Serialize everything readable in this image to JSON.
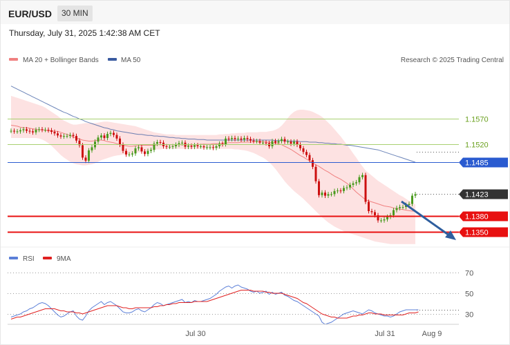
{
  "header": {
    "symbol": "EUR/USD",
    "timeframe": "30 MIN",
    "datetime": "Thursday, July 31, 2025 1:42:38 AM CET"
  },
  "legend": {
    "ma20": "MA 20 + Bollinger Bands",
    "ma50": "MA 50",
    "credit": "Research © 2025 Trading Central"
  },
  "rsi_legend": {
    "rsi": "RSI",
    "ma9": "9MA"
  },
  "colors": {
    "up": "#4a9a1e",
    "down": "#cc1010",
    "band": "#fcd8d8",
    "ma20": "#f08080",
    "ma50": "#3a5ba0",
    "support": "#e81010",
    "resistance_green": "#a8d070",
    "pivot_blue": "#2a5bd0",
    "arrow": "#2e5e9e",
    "rsi": "#5b7fd8",
    "rsi_ma": "#e02020",
    "last": "#333333"
  },
  "chart_data": [
    {
      "type": "candlestick",
      "title": "EUR/USD",
      "timeframe": "30 MIN",
      "ylim": [
        1.1331,
        1.165
      ],
      "x_ticks": [
        "Jul 30",
        "Jul 31",
        "Aug 9"
      ],
      "last_price": 1.1423,
      "levels": [
        {
          "label": "1.1570",
          "value": 1.157,
          "style": "green"
        },
        {
          "label": "1.1520",
          "value": 1.152,
          "style": "green"
        },
        {
          "label": "1.1485",
          "value": 1.1485,
          "style": "blue"
        },
        {
          "label": "1.1423",
          "value": 1.1423,
          "style": "last"
        },
        {
          "label": "1.1380",
          "value": 1.138,
          "style": "red"
        },
        {
          "label": "1.1350",
          "value": 1.135,
          "style": "red"
        }
      ],
      "close": [
        1.1546,
        1.1545,
        1.1545,
        1.1547,
        1.1549,
        1.1546,
        1.1545,
        1.1543,
        1.1548,
        1.1549,
        1.1548,
        1.1548,
        1.1547,
        1.1544,
        1.1541,
        1.1537,
        1.1535,
        1.1536,
        1.1536,
        1.1538,
        1.1536,
        1.1527,
        1.1518,
        1.1494,
        1.1488,
        1.1508,
        1.1514,
        1.1525,
        1.1533,
        1.1537,
        1.1532,
        1.154,
        1.1542,
        1.1538,
        1.1531,
        1.1519,
        1.1507,
        1.15,
        1.15,
        1.1502,
        1.1512,
        1.1514,
        1.1506,
        1.1501,
        1.1507,
        1.1509,
        1.1521,
        1.1524,
        1.1523,
        1.1516,
        1.1515,
        1.1515,
        1.1516,
        1.1519,
        1.1522,
        1.1523,
        1.1515,
        1.1517,
        1.1515,
        1.1518,
        1.1516,
        1.1516,
        1.1514,
        1.1514,
        1.1514,
        1.1513,
        1.1516,
        1.1521,
        1.152,
        1.1531,
        1.153,
        1.1532,
        1.153,
        1.1531,
        1.1529,
        1.1532,
        1.153,
        1.1527,
        1.1526,
        1.1526,
        1.1523,
        1.1523,
        1.1522,
        1.1516,
        1.1526,
        1.1523,
        1.1526,
        1.153,
        1.1525,
        1.1525,
        1.1521,
        1.1525,
        1.1519,
        1.1512,
        1.1505,
        1.1499,
        1.1489,
        1.1476,
        1.1448,
        1.1421,
        1.1426,
        1.142,
        1.1423,
        1.1423,
        1.1429,
        1.143,
        1.1429,
        1.1435,
        1.1436,
        1.1441,
        1.1444,
        1.1446,
        1.1456,
        1.146,
        1.1408,
        1.139,
        1.1388,
        1.1382,
        1.1372,
        1.1372,
        1.1374,
        1.1379,
        1.1382,
        1.1392,
        1.1396,
        1.1398,
        1.1398,
        1.1402,
        1.1404,
        1.142,
        1.1423
      ],
      "ma20": [
        1.1557,
        1.1556,
        1.1555,
        1.1553,
        1.1552,
        1.1552,
        1.1551,
        1.155,
        1.1549,
        1.1548,
        1.1548,
        1.1547,
        1.1546,
        1.1546,
        1.1545,
        1.1545,
        1.1543,
        1.1541,
        1.1539,
        1.1537,
        1.1534,
        1.1532,
        1.153,
        1.1528,
        1.1527,
        1.1526,
        1.1526,
        1.1527,
        1.1528,
        1.1528,
        1.1527,
        1.1525,
        1.1524,
        1.1523,
        1.1521,
        1.1519,
        1.1518,
        1.1517,
        1.1516,
        1.1516,
        1.1517,
        1.1517,
        1.1518,
        1.1518,
        1.1518,
        1.1518,
        1.1518,
        1.1519,
        1.1519,
        1.1519,
        1.1519,
        1.1519,
        1.1519,
        1.1519,
        1.1519,
        1.1519,
        1.1519,
        1.1519,
        1.1519,
        1.1519,
        1.1519,
        1.152,
        1.152,
        1.152,
        1.152,
        1.1521,
        1.1521,
        1.1521,
        1.1522,
        1.1522,
        1.1523,
        1.1523,
        1.1523,
        1.1523,
        1.1524,
        1.1524,
        1.1524,
        1.1524,
        1.1525,
        1.1525,
        1.1525,
        1.1525,
        1.1524,
        1.1524,
        1.1523,
        1.1522,
        1.1521,
        1.1519,
        1.1516,
        1.1513,
        1.151,
        1.1506,
        1.1502,
        1.1498,
        1.1495,
        1.1491,
        1.1488,
        1.1484,
        1.148,
        1.1477,
        1.1473,
        1.1469,
        1.1466,
        1.1462,
        1.1458,
        1.1455,
        1.1452,
        1.1448,
        1.1444,
        1.1439,
        1.1433,
        1.1427,
        1.1422,
        1.1417,
        1.1412,
        1.141,
        1.1408,
        1.1406,
        1.1404,
        1.1402,
        1.14,
        1.1399,
        1.1398,
        1.1396,
        1.1395,
        1.1394,
        1.1393,
        1.1392,
        1.1391,
        1.139,
        1.139
      ],
      "upper_band": [
        1.1614,
        1.1612,
        1.161,
        1.1608,
        1.1606,
        1.1604,
        1.1602,
        1.16,
        1.1598,
        1.1596,
        1.1594,
        1.1591,
        1.1587,
        1.1583,
        1.1579,
        1.1575,
        1.157,
        1.1566,
        1.1563,
        1.156,
        1.1558,
        1.1558,
        1.1559,
        1.156,
        1.1561,
        1.1561,
        1.1561,
        1.1561,
        1.1562,
        1.1563,
        1.1564,
        1.1564,
        1.1563,
        1.1562,
        1.1561,
        1.156,
        1.1559,
        1.1558,
        1.1557,
        1.1556,
        1.1555,
        1.1553,
        1.1551,
        1.1549,
        1.1547,
        1.1545,
        1.1543,
        1.1542,
        1.1541,
        1.154,
        1.1539,
        1.1539,
        1.1539,
        1.1538,
        1.1538,
        1.1538,
        1.1538,
        1.1538,
        1.1538,
        1.1538,
        1.1538,
        1.1538,
        1.1538,
        1.1538,
        1.1538,
        1.1538,
        1.1538,
        1.1539,
        1.1539,
        1.154,
        1.154,
        1.1541,
        1.1541,
        1.1542,
        1.1542,
        1.1542,
        1.1543,
        1.1543,
        1.1543,
        1.1543,
        1.1544,
        1.1544,
        1.1544,
        1.1545,
        1.1546,
        1.1548,
        1.1551,
        1.1556,
        1.1563,
        1.1571,
        1.1578,
        1.1583,
        1.1586,
        1.1587,
        1.1587,
        1.1586,
        1.1585,
        1.1583,
        1.158,
        1.1577,
        1.1573,
        1.1568,
        1.1562,
        1.1556,
        1.1549,
        1.1542,
        1.1535,
        1.1527,
        1.1519,
        1.1511,
        1.1502,
        1.1494,
        1.1485,
        1.1477,
        1.1469,
        1.1464,
        1.1459,
        1.1454,
        1.1449,
        1.1445,
        1.1441,
        1.1437,
        1.1433,
        1.1429,
        1.1425,
        1.1421,
        1.1418,
        1.1414,
        1.141,
        1.1407,
        1.1403
      ],
      "lower_band": [
        1.1532,
        1.1532,
        1.1532,
        1.1532,
        1.1532,
        1.1532,
        1.1532,
        1.1532,
        1.1532,
        1.1531,
        1.1529,
        1.1526,
        1.1522,
        1.1517,
        1.1511,
        1.1505,
        1.1499,
        1.1494,
        1.149,
        1.1486,
        1.1483,
        1.1481,
        1.148,
        1.1479,
        1.1479,
        1.148,
        1.1481,
        1.1483,
        1.1486,
        1.1489,
        1.1491,
        1.1493,
        1.1495,
        1.1497,
        1.1498,
        1.1499,
        1.15,
        1.15,
        1.1501,
        1.1502,
        1.1503,
        1.1504,
        1.1505,
        1.1506,
        1.1507,
        1.1508,
        1.1509,
        1.151,
        1.151,
        1.1511,
        1.1511,
        1.1511,
        1.1511,
        1.1511,
        1.1511,
        1.1511,
        1.1511,
        1.1511,
        1.1511,
        1.1511,
        1.1511,
        1.1511,
        1.1512,
        1.1512,
        1.1512,
        1.1512,
        1.1512,
        1.1511,
        1.1511,
        1.1511,
        1.1511,
        1.1511,
        1.151,
        1.151,
        1.1509,
        1.1508,
        1.1507,
        1.1505,
        1.1503,
        1.15,
        1.1497,
        1.1494,
        1.149,
        1.1485,
        1.1479,
        1.1472,
        1.1464,
        1.1456,
        1.1448,
        1.1441,
        1.1435,
        1.1429,
        1.1424,
        1.1419,
        1.1414,
        1.1408,
        1.1402,
        1.1396,
        1.139,
        1.1384,
        1.1378,
        1.1373,
        1.1368,
        1.1364,
        1.136,
        1.1357,
        1.1354,
        1.1351,
        1.1349,
        1.1347,
        1.1345,
        1.1343,
        1.1341,
        1.1339,
        1.1337,
        1.1335,
        1.1333,
        1.1331,
        1.133,
        1.1329,
        1.1328,
        1.1327,
        1.1326,
        1.1326,
        1.1326,
        1.1326,
        1.1326,
        1.1326,
        1.1326,
        1.1326,
        1.1326
      ],
      "ma50": [
        1.1633,
        1.163,
        1.1627,
        1.1624,
        1.1621,
        1.1618,
        1.1615,
        1.1612,
        1.1609,
        1.1606,
        1.1603,
        1.16,
        1.1597,
        1.1594,
        1.1591,
        1.1588,
        1.1585,
        1.1582,
        1.158,
        1.1577,
        1.1574,
        1.1572,
        1.1569,
        1.1567,
        1.1564,
        1.1562,
        1.156,
        1.1558,
        1.1556,
        1.1554,
        1.1552,
        1.1551,
        1.1549,
        1.1548,
        1.1546,
        1.1545,
        1.1544,
        1.1543,
        1.1542,
        1.1541,
        1.154,
        1.1539,
        1.1539,
        1.1538,
        1.1537,
        1.1537,
        1.1536,
        1.1536,
        1.1535,
        1.1535,
        1.1534,
        1.1533,
        1.1533,
        1.1532,
        1.1532,
        1.1531,
        1.1531,
        1.153,
        1.153,
        1.153,
        1.1529,
        1.1529,
        1.1529,
        1.1528,
        1.1528,
        1.1528,
        1.1528,
        1.1528,
        1.1528,
        1.1528,
        1.1528,
        1.1528,
        1.1528,
        1.1528,
        1.1528,
        1.1528,
        1.1528,
        1.1528,
        1.1528,
        1.1528,
        1.1528,
        1.1528,
        1.1528,
        1.1528,
        1.1528,
        1.1527,
        1.1527,
        1.1527,
        1.1527,
        1.1526,
        1.1526,
        1.1526,
        1.1526,
        1.1525,
        1.1525,
        1.1525,
        1.1524,
        1.1524,
        1.1524,
        1.1523,
        1.1523,
        1.1522,
        1.1522,
        1.1521,
        1.1521,
        1.152,
        1.152,
        1.1519,
        1.1518,
        1.1518,
        1.1517,
        1.1516,
        1.1515,
        1.1514,
        1.1513,
        1.1512,
        1.1511,
        1.151,
        1.1509,
        1.1507,
        1.1505,
        1.1503,
        1.1501,
        1.1499,
        1.1497,
        1.1495,
        1.1493,
        1.1491,
        1.1489,
        1.1487,
        1.1485
      ]
    },
    {
      "type": "line",
      "title": "RSI",
      "ylim": [
        20,
        80
      ],
      "y_ticks": [
        30,
        50,
        70
      ],
      "series": [
        {
          "name": "RSI",
          "values": [
            27,
            28,
            29,
            30,
            32,
            33,
            35,
            36,
            38,
            40,
            41,
            40,
            38,
            35,
            32,
            29,
            27,
            28,
            30,
            32,
            33,
            28,
            25,
            24,
            28,
            33,
            36,
            38,
            40,
            42,
            39,
            41,
            42,
            40,
            38,
            35,
            32,
            31,
            31,
            32,
            34,
            35,
            33,
            32,
            34,
            36,
            39,
            41,
            40,
            38,
            39,
            40,
            41,
            42,
            43,
            44,
            41,
            42,
            41,
            43,
            42,
            42,
            43,
            44,
            45,
            47,
            49,
            52,
            54,
            56,
            57,
            55,
            57,
            58,
            56,
            55,
            54,
            52,
            51,
            52,
            50,
            51,
            52,
            49,
            51,
            49,
            50,
            51,
            48,
            47,
            45,
            43,
            42,
            40,
            38,
            36,
            34,
            32,
            30,
            28,
            22,
            20,
            21,
            22,
            24,
            26,
            28,
            30,
            31,
            32,
            33,
            32,
            31,
            30,
            32,
            34,
            33,
            31,
            30,
            29,
            28,
            28,
            27,
            28,
            30,
            32,
            33,
            34,
            34,
            34,
            34,
            34
          ]
        },
        {
          "name": "9MA",
          "values": [
            25,
            26,
            27,
            27,
            28,
            29,
            30,
            31,
            32,
            33,
            34,
            35,
            35,
            35,
            35,
            34,
            33,
            33,
            32,
            32,
            32,
            31,
            31,
            30,
            31,
            32,
            33,
            34,
            35,
            36,
            37,
            38,
            38,
            38,
            38,
            37,
            36,
            36,
            35,
            35,
            36,
            36,
            36,
            36,
            36,
            36,
            37,
            37,
            38,
            38,
            39,
            39,
            40,
            40,
            41,
            41,
            41,
            41,
            41,
            42,
            42,
            42,
            42,
            42,
            43,
            44,
            45,
            46,
            47,
            48,
            49,
            50,
            51,
            52,
            53,
            53,
            53,
            53,
            52,
            52,
            52,
            52,
            51,
            51,
            50,
            50,
            50,
            50,
            49,
            48,
            47,
            46,
            45,
            43,
            41,
            40,
            38,
            36,
            34,
            32,
            30,
            29,
            28,
            27,
            27,
            26,
            26,
            26,
            26,
            27,
            28,
            28,
            29,
            29,
            30,
            31,
            31,
            30,
            30,
            30,
            29,
            29,
            29,
            29,
            29,
            29,
            29,
            30,
            31,
            31,
            31,
            32
          ]
        }
      ]
    }
  ]
}
